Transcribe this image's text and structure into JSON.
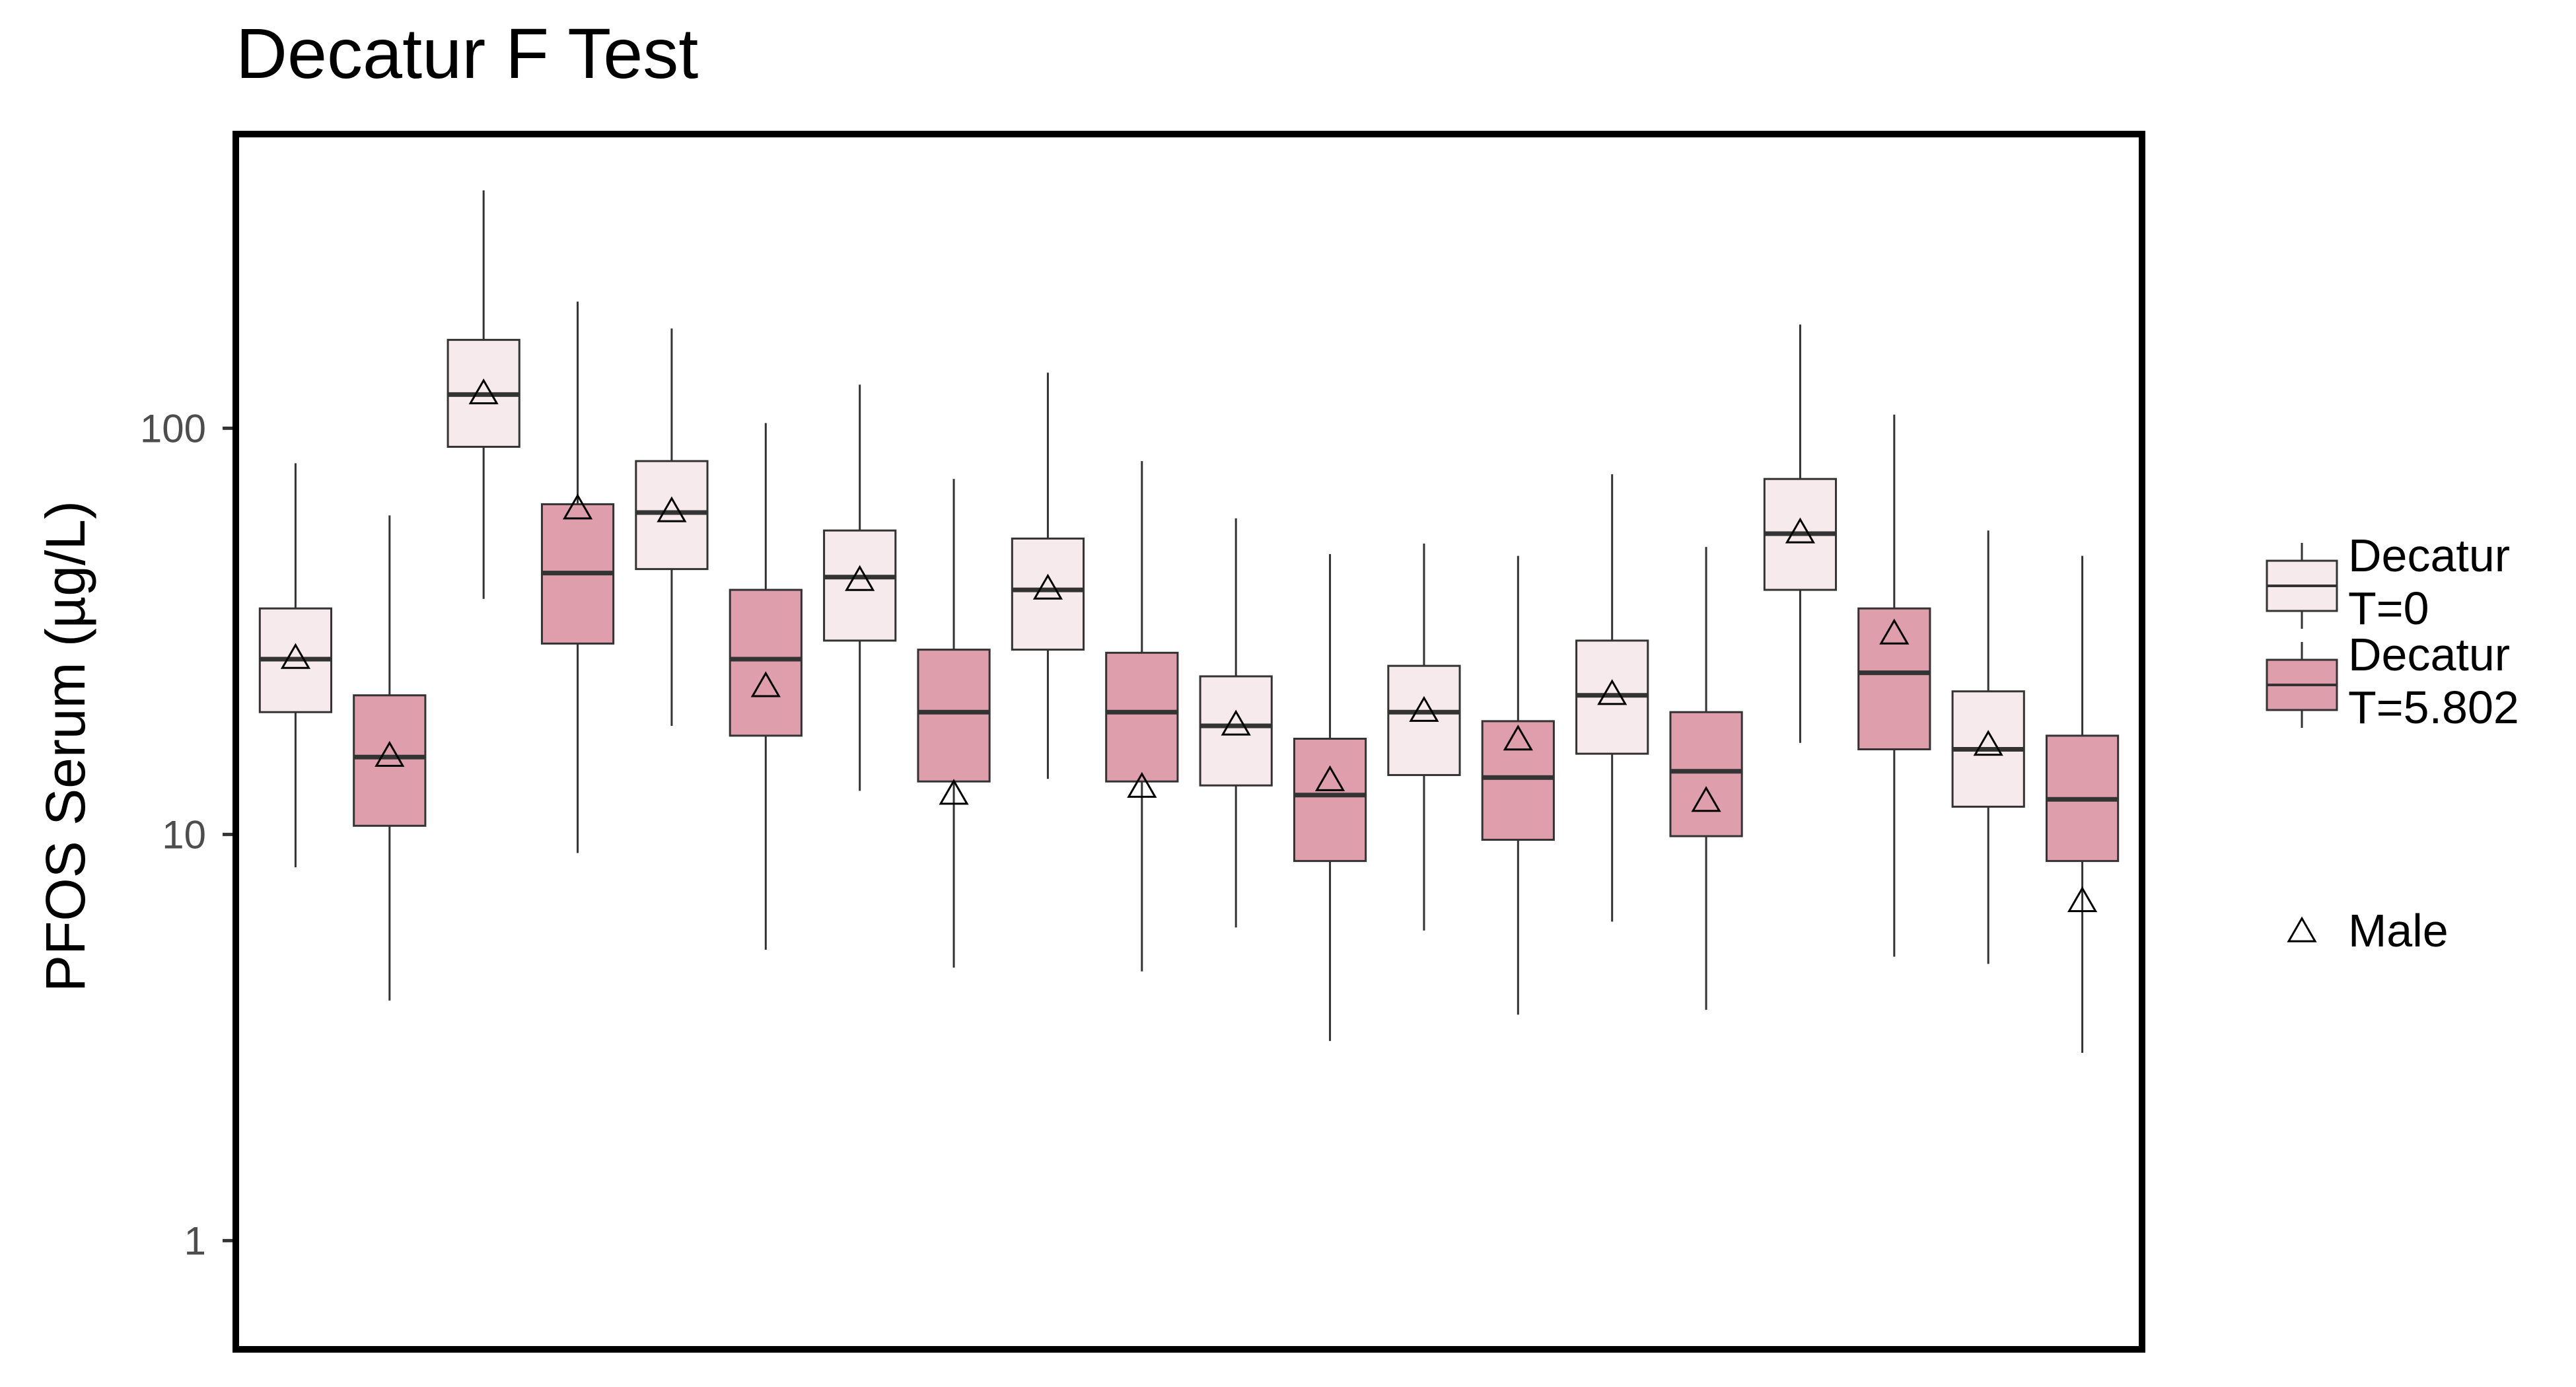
{
  "chart_data": {
    "type": "boxplot",
    "title": "Decatur F Test",
    "xlabel": "",
    "ylabel": "PFOS Serum (µg/L)",
    "y_scale": "log10",
    "ylim": [
      0.55,
      520
    ],
    "y_ticks": [
      1,
      10,
      100
    ],
    "y_tick_labels": [
      "1",
      "10",
      "100"
    ],
    "grid": false,
    "legend_position": "right",
    "colors": {
      "T0_fill": "#f7eaed",
      "T5_fill": "#df9eab",
      "box_stroke": "#333333",
      "frame": "#000000"
    },
    "legend": {
      "fill_entries": [
        {
          "line1": "Decatur",
          "line2": "T=0",
          "color_key": "T0_fill"
        },
        {
          "line1": "Decatur",
          "line2": "T=5.802",
          "color_key": "T5_fill"
        }
      ],
      "shape_entry": {
        "label": "Male",
        "shape": "triangle-open"
      }
    },
    "boxes": [
      {
        "group": "T=0",
        "lower_whisker": 8.3,
        "q1": 20,
        "median": 27,
        "q3": 36,
        "upper_whisker": 82,
        "male_mean": 27
      },
      {
        "group": "T=5.802",
        "lower_whisker": 3.9,
        "q1": 10.5,
        "median": 15.5,
        "q3": 22,
        "upper_whisker": 61,
        "male_mean": 15.5
      },
      {
        "group": "T=0",
        "lower_whisker": 38,
        "q1": 90,
        "median": 121,
        "q3": 165,
        "upper_whisker": 385,
        "male_mean": 121
      },
      {
        "group": "T=5.802",
        "lower_whisker": 9,
        "q1": 29.5,
        "median": 44,
        "q3": 65,
        "upper_whisker": 205,
        "male_mean": 63
      },
      {
        "group": "T=0",
        "lower_whisker": 18.5,
        "q1": 45,
        "median": 62,
        "q3": 83,
        "upper_whisker": 176,
        "male_mean": 62
      },
      {
        "group": "T=5.802",
        "lower_whisker": 5.2,
        "q1": 17.5,
        "median": 27,
        "q3": 40,
        "upper_whisker": 103,
        "male_mean": 23
      },
      {
        "group": "T=0",
        "lower_whisker": 12.8,
        "q1": 30,
        "median": 43,
        "q3": 56,
        "upper_whisker": 128,
        "male_mean": 42
      },
      {
        "group": "T=5.802",
        "lower_whisker": 4.7,
        "q1": 13.5,
        "median": 20,
        "q3": 28.5,
        "upper_whisker": 75,
        "male_mean": 12.5
      },
      {
        "group": "T=0",
        "lower_whisker": 13.7,
        "q1": 28.5,
        "median": 40,
        "q3": 53.5,
        "upper_whisker": 137,
        "male_mean": 40
      },
      {
        "group": "T=5.802",
        "lower_whisker": 4.6,
        "q1": 13.5,
        "median": 20,
        "q3": 28,
        "upper_whisker": 83,
        "male_mean": 13
      },
      {
        "group": "T=0",
        "lower_whisker": 5.9,
        "q1": 13.2,
        "median": 18.5,
        "q3": 24.5,
        "upper_whisker": 60,
        "male_mean": 18.5
      },
      {
        "group": "T=5.802",
        "lower_whisker": 3.1,
        "q1": 8.6,
        "median": 12.5,
        "q3": 17.2,
        "upper_whisker": 49,
        "male_mean": 13.5
      },
      {
        "group": "T=0",
        "lower_whisker": 5.8,
        "q1": 14,
        "median": 20,
        "q3": 26,
        "upper_whisker": 52,
        "male_mean": 20
      },
      {
        "group": "T=5.802",
        "lower_whisker": 3.6,
        "q1": 9.7,
        "median": 13.8,
        "q3": 19,
        "upper_whisker": 48.5,
        "male_mean": 17
      },
      {
        "group": "T=0",
        "lower_whisker": 6.1,
        "q1": 15.8,
        "median": 22,
        "q3": 30,
        "upper_whisker": 77,
        "male_mean": 22
      },
      {
        "group": "T=5.802",
        "lower_whisker": 3.7,
        "q1": 9.9,
        "median": 14.3,
        "q3": 20,
        "upper_whisker": 51,
        "male_mean": 12
      },
      {
        "group": "T=0",
        "lower_whisker": 16.8,
        "q1": 40,
        "median": 55,
        "q3": 75,
        "upper_whisker": 180,
        "male_mean": 55
      },
      {
        "group": "T=5.802",
        "lower_whisker": 5,
        "q1": 16.2,
        "median": 25,
        "q3": 36,
        "upper_whisker": 108,
        "male_mean": 31
      },
      {
        "group": "T=0",
        "lower_whisker": 4.8,
        "q1": 11.7,
        "median": 16.2,
        "q3": 22.5,
        "upper_whisker": 56,
        "male_mean": 16.5
      },
      {
        "group": "T=5.802",
        "lower_whisker": 2.9,
        "q1": 8.6,
        "median": 12.2,
        "q3": 17.5,
        "upper_whisker": 48.5,
        "male_mean": 6.8
      }
    ]
  }
}
